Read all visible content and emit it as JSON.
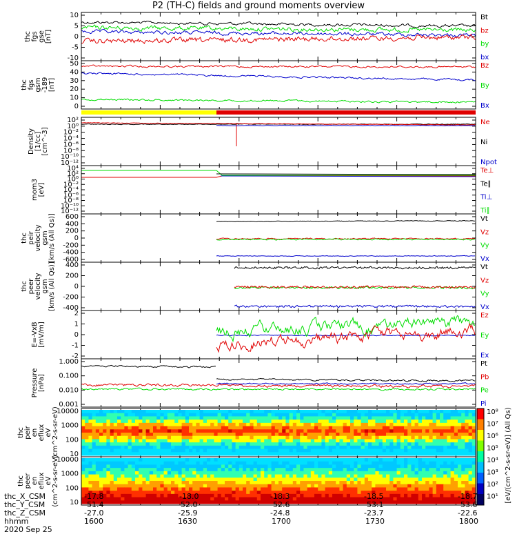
{
  "title": "P2 (TH-C) fields and ground moments overview",
  "colors": {
    "black": "#000000",
    "red": "#e00000",
    "green": "#00dd00",
    "blue": "#0000cc",
    "yellow": "#ffff00"
  },
  "x_axis": {
    "rows": [
      {
        "label": "thc_X_CSM",
        "values": [
          "-17.8",
          "-18.0",
          "-18.3",
          "-18.5",
          "-18.7"
        ]
      },
      {
        "label": "thc_Y_CSM",
        "values": [
          "51.4",
          "52.0",
          "52.6",
          "53.1",
          "53.6"
        ]
      },
      {
        "label": "thc_Z_CSM",
        "values": [
          "-27.0",
          "-25.9",
          "-24.8",
          "-23.7",
          "-22.6"
        ]
      },
      {
        "label": "hhmm",
        "values": [
          "1600",
          "1630",
          "1700",
          "1730",
          "1800"
        ]
      }
    ],
    "date": "2020 Sep 25"
  },
  "colorbar": {
    "label": "[eV/(cm^2-s-sr-eV)] (All Qs)",
    "ticks": [
      "10^8",
      "10^7",
      "10^6",
      "10^5",
      "10^4",
      "10^3",
      "10^2",
      "10^1"
    ]
  },
  "chart_data": [
    {
      "type": "line",
      "ylabel": [
        "thc",
        "fgs",
        "gse",
        "[nT]"
      ],
      "ylim": [
        -10,
        10
      ],
      "yticks": [
        "10",
        "5",
        "0",
        "-5",
        "-10"
      ],
      "series": [
        {
          "name": "Bt",
          "color": "black",
          "level": 7
        },
        {
          "name": "bz",
          "color": "red",
          "level": -1
        },
        {
          "name": "by",
          "color": "green",
          "level": 1
        },
        {
          "name": "bx",
          "color": "blue",
          "level": 3
        }
      ]
    },
    {
      "type": "line",
      "ylabel": [
        "thc",
        "fgs",
        "gsm",
        "-189",
        "[nT]"
      ],
      "ylim": [
        -2,
        50
      ],
      "yticks": [
        "50",
        "40",
        "30",
        "20",
        "10",
        "0"
      ],
      "series": [
        {
          "name": "Bz",
          "color": "red",
          "level": 42
        },
        {
          "name": "By",
          "color": "green",
          "level": 8
        },
        {
          "name": "Bx",
          "color": "blue",
          "level": 35
        }
      ]
    },
    {
      "type": "line",
      "ylabel": [
        "Density",
        "[1/cc]",
        "[cm^-3]"
      ],
      "ylim": [
        "10^-12",
        "10^2"
      ],
      "yticks": [
        "10^2",
        "10^0",
        "10^-2",
        "10^-4",
        "10^-6",
        "10^-8",
        "10^-10",
        "10^-12"
      ],
      "series": [
        {
          "name": "Ne",
          "color": "red"
        },
        {
          "name": "Ni",
          "color": "black"
        },
        {
          "name": "Npot",
          "color": "blue"
        }
      ]
    },
    {
      "type": "line",
      "ylabel": [
        "mom3",
        "[eV]"
      ],
      "ylim": [
        "10^-12",
        "10^4"
      ],
      "yticks": [
        "10^4",
        "10^2",
        "10^0",
        "10^-2",
        "10^-4",
        "10^-6",
        "10^-8",
        "10^-10",
        "10^-12"
      ],
      "series": [
        {
          "name": "Te⊥",
          "color": "red"
        },
        {
          "name": "Te∥",
          "color": "black"
        },
        {
          "name": "Ti⊥",
          "color": "blue"
        },
        {
          "name": "Ti∥",
          "color": "green"
        }
      ]
    },
    {
      "type": "line",
      "ylabel": [
        "thc",
        "peir",
        "velocity",
        "gsm",
        "[km/s (All Qs)]"
      ],
      "ylim": [
        -600,
        600
      ],
      "yticks": [
        "600",
        "400",
        "200",
        "0",
        "-200",
        "-400",
        "-600"
      ],
      "series": [
        {
          "name": "Vt",
          "color": "black",
          "level": 470
        },
        {
          "name": "Vz",
          "color": "red",
          "level": 5
        },
        {
          "name": "Vy",
          "color": "green",
          "level": -20
        },
        {
          "name": "Vx",
          "color": "blue",
          "level": -470
        }
      ]
    },
    {
      "type": "line",
      "ylabel": [
        "thc",
        "peer",
        "velocity",
        "gsm",
        "[km/s (All Qs)]"
      ],
      "ylim": [
        -450,
        450
      ],
      "yticks": [
        "400",
        "200",
        "0",
        "-200",
        "-400"
      ],
      "series": [
        {
          "name": "Vt",
          "color": "black",
          "level": 380
        },
        {
          "name": "Vz",
          "color": "red",
          "level": 5
        },
        {
          "name": "Vy",
          "color": "green",
          "level": 10
        },
        {
          "name": "Vx",
          "color": "blue",
          "level": -380
        }
      ]
    },
    {
      "type": "line",
      "ylabel": [
        "E=-VxB",
        "[mV/m]"
      ],
      "ylim": [
        -2.5,
        2.5
      ],
      "yticks": [
        "2",
        "1",
        "0",
        "-1",
        "-2"
      ],
      "series": [
        {
          "name": "Ez",
          "color": "red",
          "level": -1.2
        },
        {
          "name": "Ey",
          "color": "green",
          "level": 0.5
        },
        {
          "name": "Ex",
          "color": "blue",
          "level": 0
        }
      ]
    },
    {
      "type": "line",
      "ylabel": [
        "Pressure",
        "[nPa]"
      ],
      "ylim": [
        0.0008,
        2
      ],
      "yticks": [
        "1.000",
        "0.100",
        "0.010",
        "0.001"
      ],
      "series": [
        {
          "name": "Pt",
          "color": "black"
        },
        {
          "name": "Pb",
          "color": "red"
        },
        {
          "name": "Pe",
          "color": "green"
        },
        {
          "name": "Pi",
          "color": "blue"
        }
      ]
    },
    {
      "type": "heatmap",
      "ylabel": [
        "thc",
        "peir",
        "en",
        "eflux",
        "eV",
        "(cm^2-s-sr-eV)"
      ],
      "yticks": [
        "10000",
        "1000",
        "100",
        "10"
      ]
    },
    {
      "type": "heatmap",
      "ylabel": [
        "thc",
        "peer",
        "en",
        "eflux",
        "eV",
        "(cm^2-s-sr-eV)"
      ],
      "yticks": [
        "10000",
        "1000",
        "100",
        "10"
      ]
    }
  ]
}
